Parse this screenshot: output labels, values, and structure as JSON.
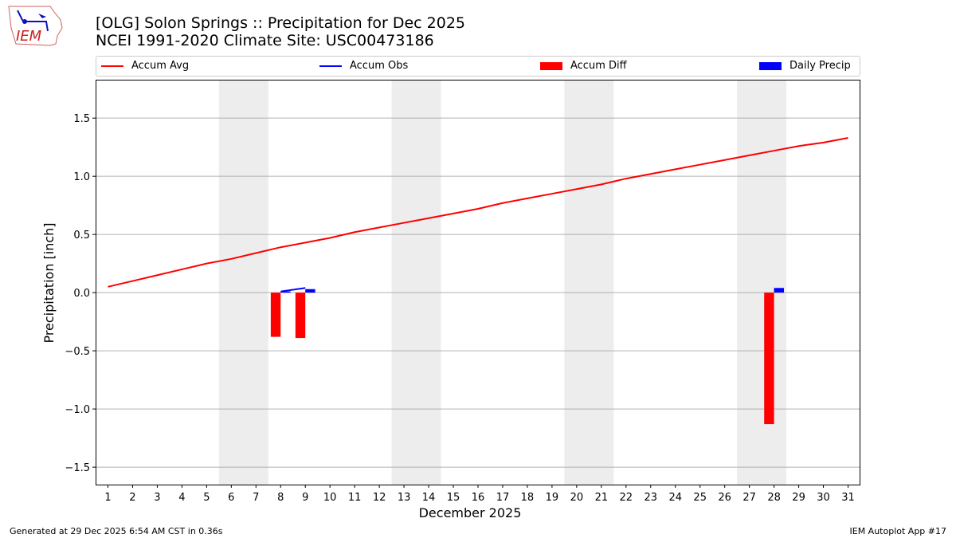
{
  "logo_text": "IEM",
  "title_line1": "[OLG] Solon Springs :: Precipitation for Dec 2025",
  "title_line2": "NCEI 1991-2020 Climate Site: USC00473186",
  "footer_left": "Generated at 29 Dec 2025 6:54 AM CST in 0.36s",
  "footer_right": "IEM Autoplot App #17",
  "chart_data": {
    "type": "bar+line",
    "xlabel": "December 2025",
    "ylabel": "Precipitation [inch]",
    "xlim": [
      0.5,
      31.5
    ],
    "ylim": [
      -1.65,
      1.83
    ],
    "yticks": [
      -1.5,
      -1.0,
      -0.5,
      0.0,
      0.5,
      1.0,
      1.5
    ],
    "ytick_labels": [
      "−1.5",
      "−1.0",
      "−0.5",
      "0.0",
      "0.5",
      "1.0",
      "1.5"
    ],
    "xticks": [
      1,
      2,
      3,
      4,
      5,
      6,
      7,
      8,
      9,
      10,
      11,
      12,
      13,
      14,
      15,
      16,
      17,
      18,
      19,
      20,
      21,
      22,
      23,
      24,
      25,
      26,
      27,
      28,
      29,
      30,
      31
    ],
    "grid": "y",
    "legend_placement": "top",
    "weekend_shading": [
      [
        5.5,
        7.5
      ],
      [
        12.5,
        14.5
      ],
      [
        19.5,
        21.5
      ],
      [
        26.5,
        28.5
      ]
    ],
    "series": [
      {
        "name": "Accum Avg",
        "type": "line",
        "color": "#ff0000",
        "x": [
          1,
          2,
          3,
          4,
          5,
          6,
          7,
          8,
          9,
          10,
          11,
          12,
          13,
          14,
          15,
          16,
          17,
          18,
          19,
          20,
          21,
          22,
          23,
          24,
          25,
          26,
          27,
          28,
          29,
          30,
          31
        ],
        "values": [
          0.05,
          0.1,
          0.15,
          0.2,
          0.25,
          0.29,
          0.34,
          0.39,
          0.43,
          0.47,
          0.52,
          0.56,
          0.6,
          0.64,
          0.68,
          0.72,
          0.77,
          0.81,
          0.85,
          0.89,
          0.93,
          0.98,
          1.02,
          1.06,
          1.1,
          1.14,
          1.18,
          1.22,
          1.26,
          1.29,
          1.33
        ]
      },
      {
        "name": "Accum Obs",
        "type": "line",
        "color": "#0000ff",
        "x": [
          8,
          9
        ],
        "values": [
          0.01,
          0.04
        ]
      },
      {
        "name": "Accum Diff",
        "type": "bar",
        "color": "#ff0000",
        "x": [
          8,
          9,
          28
        ],
        "values": [
          -0.38,
          -0.39,
          -1.13
        ]
      },
      {
        "name": "Daily Precip",
        "type": "bar",
        "color": "#0000ff",
        "x": [
          8,
          9,
          28
        ],
        "values": [
          0.01,
          0.03,
          0.04
        ]
      }
    ]
  }
}
